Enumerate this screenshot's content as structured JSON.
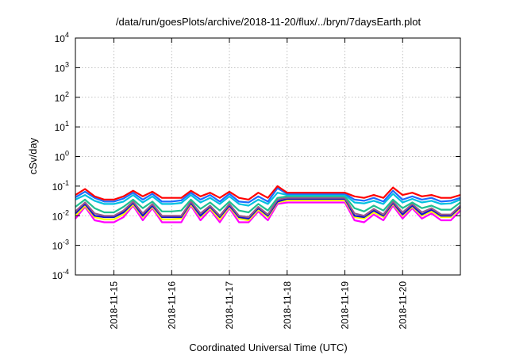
{
  "chart_data": {
    "type": "line",
    "title": "/data/run/goesPlots/archive/2018-11-20/flux/../bryn/7daysEarth.plot",
    "xlabel": "Coordinated Universal Time (UTC)",
    "ylabel": "cSv/day",
    "yscale": "log",
    "ylim": [
      0.0001,
      10000
    ],
    "xlim_day_of_nov_2018": [
      14.333,
      21.0
    ],
    "grid": true,
    "y_ticks": [
      {
        "value": 0.0001,
        "base": "10",
        "exp": "-4"
      },
      {
        "value": 0.001,
        "base": "10",
        "exp": "-3"
      },
      {
        "value": 0.01,
        "base": "10",
        "exp": "-2"
      },
      {
        "value": 0.1,
        "base": "10",
        "exp": "-1"
      },
      {
        "value": 1,
        "base": "10",
        "exp": "0"
      },
      {
        "value": 10,
        "base": "10",
        "exp": "1"
      },
      {
        "value": 100,
        "base": "10",
        "exp": "2"
      },
      {
        "value": 1000,
        "base": "10",
        "exp": "3"
      },
      {
        "value": 10000,
        "base": "10",
        "exp": "4"
      }
    ],
    "x_ticks": [
      {
        "value": 15,
        "label": "2018-11-15"
      },
      {
        "value": 16,
        "label": "2018-11-16"
      },
      {
        "value": 17,
        "label": "2018-11-17"
      },
      {
        "value": 18,
        "label": "2018-11-18"
      },
      {
        "value": 19,
        "label": "2018-11-19"
      },
      {
        "value": 20,
        "label": "2018-11-20"
      }
    ],
    "x_start": 14.333,
    "x_step": 0.16667,
    "series": [
      {
        "name": "red",
        "color": "#ff0000",
        "values": [
          0.05,
          0.08,
          0.045,
          0.035,
          0.035,
          0.045,
          0.07,
          0.045,
          0.065,
          0.04,
          0.04,
          0.04,
          0.07,
          0.045,
          0.06,
          0.04,
          0.065,
          0.04,
          0.035,
          0.06,
          0.04,
          0.1,
          0.06,
          0.06,
          0.06,
          0.06,
          0.06,
          0.06,
          0.06,
          0.045,
          0.04,
          0.05,
          0.04,
          0.09,
          0.05,
          0.06,
          0.045,
          0.05,
          0.04,
          0.04,
          0.05
        ]
      },
      {
        "name": "blue",
        "color": "#1e6cff",
        "values": [
          0.042,
          0.065,
          0.04,
          0.03,
          0.03,
          0.038,
          0.06,
          0.035,
          0.055,
          0.03,
          0.03,
          0.033,
          0.06,
          0.035,
          0.05,
          0.03,
          0.055,
          0.03,
          0.028,
          0.045,
          0.03,
          0.085,
          0.055,
          0.055,
          0.055,
          0.055,
          0.055,
          0.055,
          0.055,
          0.035,
          0.032,
          0.04,
          0.03,
          0.07,
          0.035,
          0.045,
          0.035,
          0.04,
          0.03,
          0.032,
          0.04
        ]
      },
      {
        "name": "cyan",
        "color": "#00c0e0",
        "values": [
          0.035,
          0.05,
          0.032,
          0.025,
          0.025,
          0.03,
          0.05,
          0.028,
          0.045,
          0.025,
          0.025,
          0.027,
          0.05,
          0.028,
          0.04,
          0.025,
          0.045,
          0.025,
          0.022,
          0.035,
          0.025,
          0.06,
          0.05,
          0.05,
          0.05,
          0.05,
          0.05,
          0.05,
          0.05,
          0.028,
          0.026,
          0.032,
          0.025,
          0.055,
          0.028,
          0.037,
          0.028,
          0.032,
          0.025,
          0.026,
          0.035
        ]
      },
      {
        "name": "teal",
        "color": "#20c090",
        "values": [
          0.02,
          0.035,
          0.018,
          0.013,
          0.013,
          0.02,
          0.035,
          0.018,
          0.03,
          0.014,
          0.014,
          0.015,
          0.035,
          0.017,
          0.028,
          0.015,
          0.03,
          0.015,
          0.013,
          0.025,
          0.015,
          0.04,
          0.045,
          0.045,
          0.045,
          0.045,
          0.045,
          0.045,
          0.045,
          0.018,
          0.014,
          0.022,
          0.015,
          0.035,
          0.018,
          0.028,
          0.018,
          0.022,
          0.016,
          0.016,
          0.028
        ]
      },
      {
        "name": "purple",
        "color": "#9a5a8a",
        "values": [
          0.014,
          0.028,
          0.012,
          0.01,
          0.01,
          0.015,
          0.03,
          0.012,
          0.025,
          0.01,
          0.01,
          0.01,
          0.03,
          0.012,
          0.022,
          0.01,
          0.025,
          0.01,
          0.009,
          0.02,
          0.011,
          0.035,
          0.04,
          0.04,
          0.04,
          0.04,
          0.04,
          0.04,
          0.04,
          0.012,
          0.01,
          0.017,
          0.011,
          0.03,
          0.013,
          0.025,
          0.013,
          0.018,
          0.011,
          0.011,
          0.022
        ]
      },
      {
        "name": "darkblue",
        "color": "#1010d0",
        "values": [
          0.012,
          0.025,
          0.01,
          0.009,
          0.009,
          0.013,
          0.027,
          0.01,
          0.022,
          0.009,
          0.009,
          0.009,
          0.027,
          0.01,
          0.02,
          0.009,
          0.022,
          0.009,
          0.008,
          0.018,
          0.01,
          0.03,
          0.037,
          0.037,
          0.037,
          0.037,
          0.037,
          0.037,
          0.037,
          0.01,
          0.009,
          0.015,
          0.01,
          0.027,
          0.011,
          0.022,
          0.011,
          0.016,
          0.01,
          0.01,
          0.02
        ]
      },
      {
        "name": "yellow",
        "color": "#ffff00",
        "values": [
          0.01,
          0.022,
          0.009,
          0.0075,
          0.0075,
          0.011,
          0.024,
          0.009,
          0.02,
          0.0075,
          0.0075,
          0.008,
          0.024,
          0.009,
          0.018,
          0.0075,
          0.02,
          0.008,
          0.007,
          0.016,
          0.009,
          0.028,
          0.033,
          0.033,
          0.033,
          0.033,
          0.033,
          0.033,
          0.033,
          0.009,
          0.008,
          0.013,
          0.009,
          0.025,
          0.01,
          0.02,
          0.01,
          0.014,
          0.009,
          0.009,
          0.018
        ]
      },
      {
        "name": "magenta",
        "color": "#ff00ff",
        "values": [
          0.008,
          0.02,
          0.007,
          0.006,
          0.006,
          0.009,
          0.022,
          0.007,
          0.018,
          0.006,
          0.006,
          0.006,
          0.022,
          0.007,
          0.016,
          0.006,
          0.018,
          0.006,
          0.006,
          0.014,
          0.007,
          0.025,
          0.028,
          0.028,
          0.028,
          0.028,
          0.028,
          0.028,
          0.028,
          0.007,
          0.006,
          0.011,
          0.007,
          0.022,
          0.008,
          0.018,
          0.008,
          0.012,
          0.007,
          0.007,
          0.015
        ]
      }
    ]
  }
}
